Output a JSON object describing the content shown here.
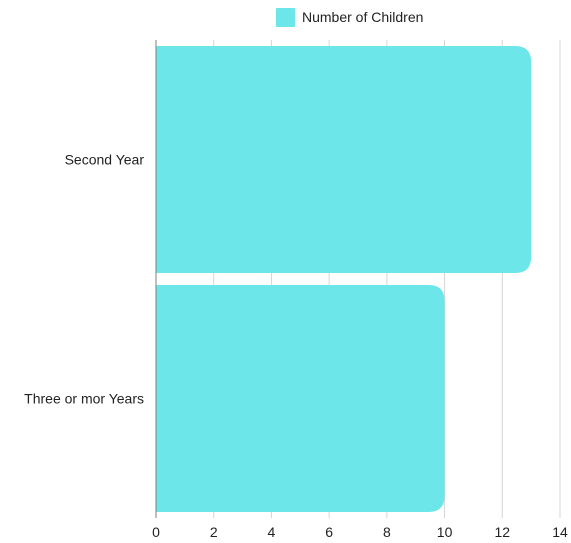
{
  "chart_data": {
    "type": "bar",
    "orientation": "horizontal",
    "categories": [
      "Second Year",
      "Three or mor Years"
    ],
    "series": [
      {
        "name": "Number of Children",
        "values": [
          13,
          10
        ],
        "color": "#6ce6e8"
      }
    ],
    "x_ticks": [
      "0",
      "2",
      "4",
      "6",
      "8",
      "10",
      "12",
      "14"
    ],
    "xlim": [
      0,
      14
    ],
    "legend": {
      "position": "top",
      "label": "Number of Children"
    },
    "grid": {
      "vertical": true,
      "horizontal": false
    },
    "title": "",
    "xlabel": "",
    "ylabel": ""
  }
}
